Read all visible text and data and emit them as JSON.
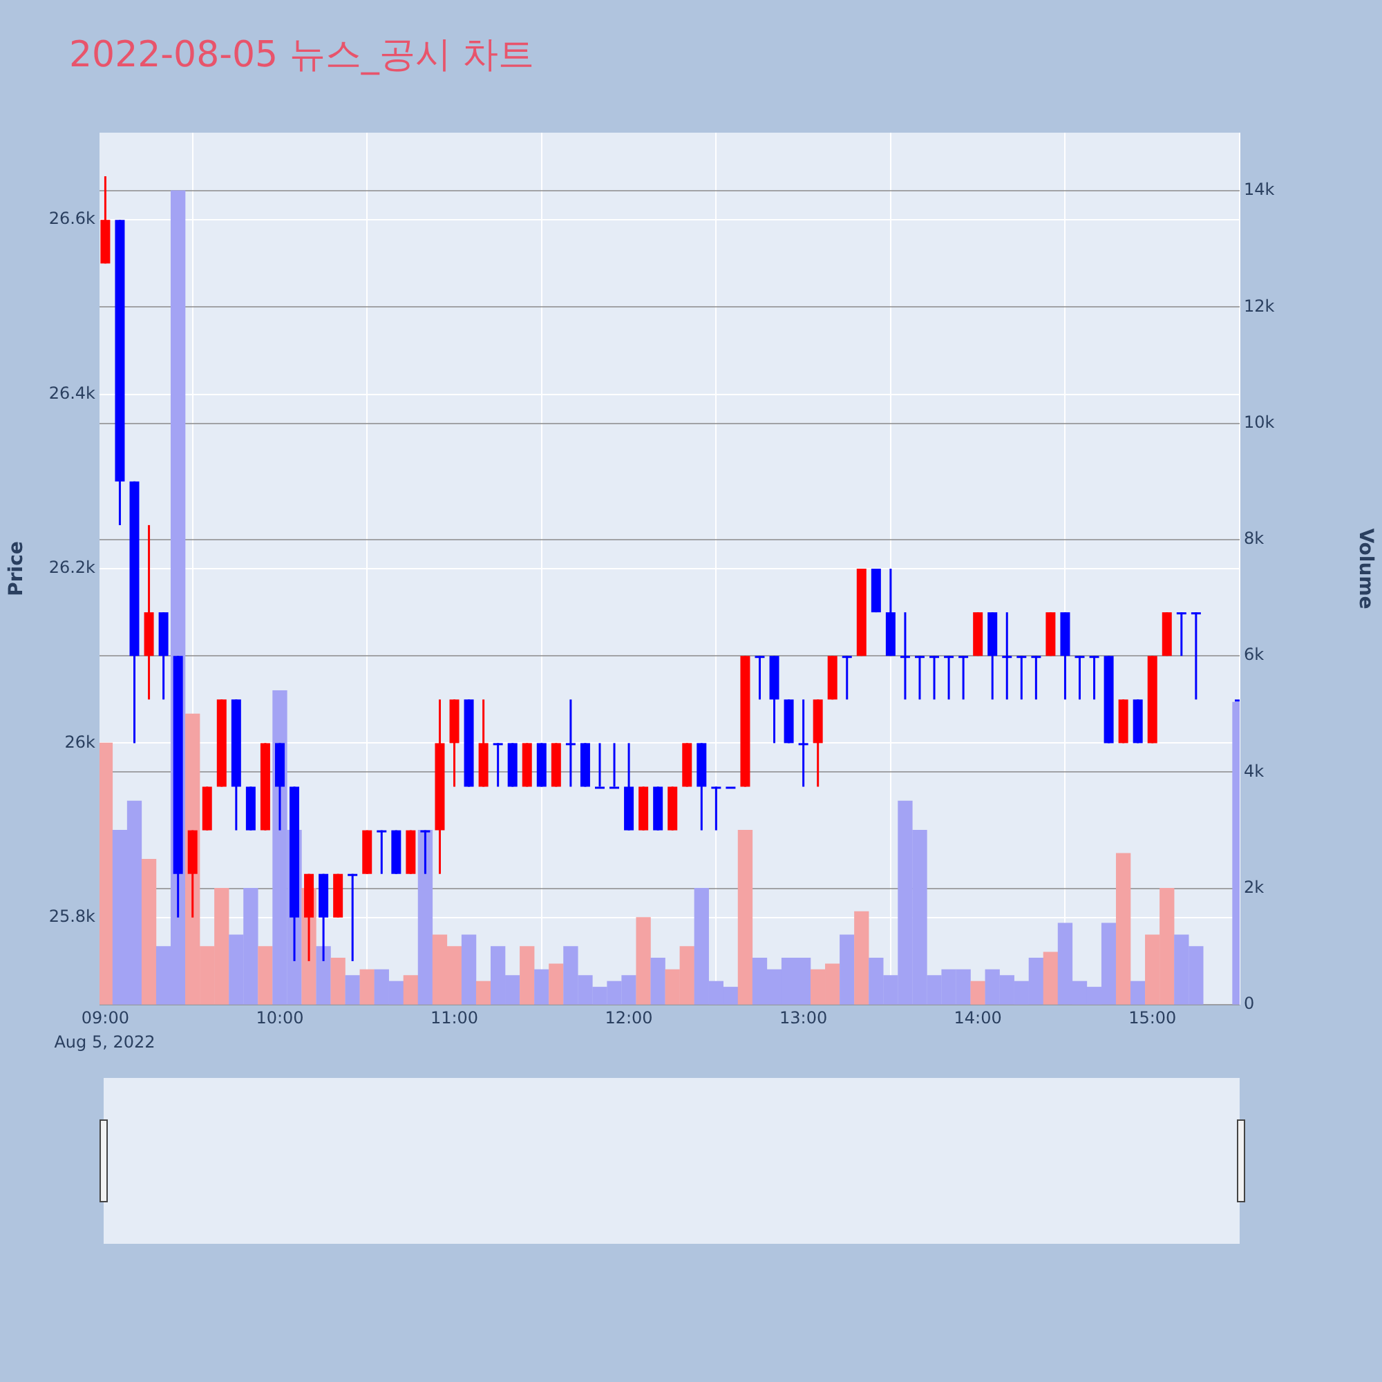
{
  "chart_data": {
    "type": "candlestick",
    "title": "2022-08-05 뉴스_공시 차트",
    "ylabel": "Price",
    "y2label": "Volume",
    "x": [
      "2022-08-05T09:00",
      "2022-08-05T09:05",
      "2022-08-05T09:10",
      "2022-08-05T09:15",
      "2022-08-05T09:20",
      "2022-08-05T09:25",
      "2022-08-05T09:30",
      "2022-08-05T09:35",
      "2022-08-05T09:40",
      "2022-08-05T09:45",
      "2022-08-05T09:50",
      "2022-08-05T09:55",
      "2022-08-05T10:00",
      "2022-08-05T10:05",
      "2022-08-05T10:10",
      "2022-08-05T10:15",
      "2022-08-05T10:20",
      "2022-08-05T10:25",
      "2022-08-05T10:30",
      "2022-08-05T10:35",
      "2022-08-05T10:40",
      "2022-08-05T10:45",
      "2022-08-05T10:50",
      "2022-08-05T10:55",
      "2022-08-05T11:00",
      "2022-08-05T11:05",
      "2022-08-05T11:10",
      "2022-08-05T11:15",
      "2022-08-05T11:20",
      "2022-08-05T11:25",
      "2022-08-05T11:30",
      "2022-08-05T11:35",
      "2022-08-05T11:40",
      "2022-08-05T11:45",
      "2022-08-05T11:50",
      "2022-08-05T11:55",
      "2022-08-05T12:00",
      "2022-08-05T12:05",
      "2022-08-05T12:10",
      "2022-08-05T12:15",
      "2022-08-05T12:20",
      "2022-08-05T12:25",
      "2022-08-05T12:30",
      "2022-08-05T12:35",
      "2022-08-05T12:40",
      "2022-08-05T12:45",
      "2022-08-05T12:50",
      "2022-08-05T12:55",
      "2022-08-05T13:00",
      "2022-08-05T13:05",
      "2022-08-05T13:10",
      "2022-08-05T13:15",
      "2022-08-05T13:20",
      "2022-08-05T13:25",
      "2022-08-05T13:30",
      "2022-08-05T13:35",
      "2022-08-05T13:40",
      "2022-08-05T13:45",
      "2022-08-05T13:50",
      "2022-08-05T13:55",
      "2022-08-05T14:00",
      "2022-08-05T14:05",
      "2022-08-05T14:10",
      "2022-08-05T14:15",
      "2022-08-05T14:20",
      "2022-08-05T14:25",
      "2022-08-05T14:30",
      "2022-08-05T14:35",
      "2022-08-05T14:40",
      "2022-08-05T14:45",
      "2022-08-05T14:50",
      "2022-08-05T14:55",
      "2022-08-05T15:00",
      "2022-08-05T15:05",
      "2022-08-05T15:10",
      "2022-08-05T15:15",
      "2022-08-05T15:30"
    ],
    "ohlc": [
      [
        26550,
        26650,
        26550,
        26600
      ],
      [
        26600,
        26600,
        26250,
        26300
      ],
      [
        26300,
        26300,
        26000,
        26100
      ],
      [
        26100,
        26250,
        26050,
        26150
      ],
      [
        26150,
        26150,
        26050,
        26100
      ],
      [
        26100,
        26100,
        25800,
        25850
      ],
      [
        25850,
        25900,
        25800,
        25900
      ],
      [
        25900,
        25950,
        25900,
        25950
      ],
      [
        25950,
        26050,
        25950,
        26050
      ],
      [
        26050,
        26050,
        25900,
        25950
      ],
      [
        25950,
        25950,
        25900,
        25900
      ],
      [
        25900,
        26000,
        25900,
        26000
      ],
      [
        26000,
        26000,
        25900,
        25950
      ],
      [
        25950,
        25950,
        25750,
        25800
      ],
      [
        25800,
        25850,
        25750,
        25850
      ],
      [
        25850,
        25850,
        25750,
        25800
      ],
      [
        25800,
        25850,
        25800,
        25850
      ],
      [
        25850,
        25850,
        25750,
        25850
      ],
      [
        25850,
        25900,
        25850,
        25900
      ],
      [
        25900,
        25900,
        25850,
        25900
      ],
      [
        25900,
        25900,
        25850,
        25850
      ],
      [
        25850,
        25900,
        25850,
        25900
      ],
      [
        25900,
        25900,
        25850,
        25900
      ],
      [
        25900,
        26050,
        25850,
        26000
      ],
      [
        26000,
        26050,
        25950,
        26050
      ],
      [
        26050,
        26050,
        25950,
        25950
      ],
      [
        25950,
        26050,
        25950,
        26000
      ],
      [
        26000,
        26000,
        25950,
        26000
      ],
      [
        26000,
        26000,
        25950,
        25950
      ],
      [
        25950,
        26000,
        25950,
        26000
      ],
      [
        26000,
        26000,
        25950,
        25950
      ],
      [
        25950,
        26000,
        25950,
        26000
      ],
      [
        26000,
        26050,
        25950,
        26000
      ],
      [
        26000,
        26000,
        25950,
        25950
      ],
      [
        25950,
        26000,
        25950,
        25950
      ],
      [
        25950,
        26000,
        25950,
        25950
      ],
      [
        25950,
        26000,
        25900,
        25900
      ],
      [
        25900,
        25950,
        25900,
        25950
      ],
      [
        25950,
        25950,
        25900,
        25900
      ],
      [
        25900,
        25950,
        25900,
        25950
      ],
      [
        25950,
        26000,
        25950,
        26000
      ],
      [
        26000,
        26000,
        25900,
        25950
      ],
      [
        25950,
        25950,
        25900,
        25950
      ],
      [
        25950,
        25950,
        25950,
        25950
      ],
      [
        25950,
        26100,
        25950,
        26100
      ],
      [
        26100,
        26100,
        26050,
        26100
      ],
      [
        26100,
        26100,
        26000,
        26050
      ],
      [
        26050,
        26050,
        26000,
        26000
      ],
      [
        26000,
        26050,
        25950,
        26000
      ],
      [
        26000,
        26050,
        25950,
        26050
      ],
      [
        26050,
        26100,
        26050,
        26100
      ],
      [
        26100,
        26100,
        26050,
        26100
      ],
      [
        26100,
        26200,
        26100,
        26200
      ],
      [
        26200,
        26200,
        26150,
        26150
      ],
      [
        26150,
        26200,
        26100,
        26100
      ],
      [
        26100,
        26150,
        26050,
        26100
      ],
      [
        26100,
        26100,
        26050,
        26100
      ],
      [
        26100,
        26100,
        26050,
        26100
      ],
      [
        26100,
        26100,
        26050,
        26100
      ],
      [
        26100,
        26100,
        26050,
        26100
      ],
      [
        26100,
        26150,
        26100,
        26150
      ],
      [
        26150,
        26150,
        26050,
        26100
      ],
      [
        26100,
        26150,
        26050,
        26100
      ],
      [
        26100,
        26100,
        26050,
        26100
      ],
      [
        26100,
        26100,
        26050,
        26100
      ],
      [
        26100,
        26150,
        26100,
        26150
      ],
      [
        26150,
        26150,
        26050,
        26100
      ],
      [
        26100,
        26100,
        26050,
        26100
      ],
      [
        26100,
        26100,
        26050,
        26100
      ],
      [
        26100,
        26100,
        26000,
        26000
      ],
      [
        26000,
        26050,
        26000,
        26050
      ],
      [
        26050,
        26050,
        26000,
        26000
      ],
      [
        26000,
        26100,
        26000,
        26100
      ],
      [
        26100,
        26150,
        26100,
        26150
      ],
      [
        26150,
        26150,
        26100,
        26150
      ],
      [
        26150,
        26150,
        26050,
        26150
      ],
      [
        26050,
        26050,
        26050,
        26050
      ]
    ],
    "colors": [
      "#ff0000",
      "#0000ff",
      "#0000ff",
      "#ff0000",
      "#0000ff",
      "#0000ff",
      "#ff0000",
      "#ff0000",
      "#ff0000",
      "#0000ff",
      "#0000ff",
      "#ff0000",
      "#0000ff",
      "#0000ff",
      "#ff0000",
      "#0000ff",
      "#ff0000",
      "#0000ff",
      "#ff0000",
      "#0000ff",
      "#0000ff",
      "#ff0000",
      "#0000ff",
      "#ff0000",
      "#ff0000",
      "#0000ff",
      "#ff0000",
      "#0000ff",
      "#0000ff",
      "#ff0000",
      "#0000ff",
      "#ff0000",
      "#0000ff",
      "#0000ff",
      "#0000ff",
      "#0000ff",
      "#0000ff",
      "#ff0000",
      "#0000ff",
      "#ff0000",
      "#ff0000",
      "#0000ff",
      "#0000ff",
      "#0000ff",
      "#ff0000",
      "#0000ff",
      "#0000ff",
      "#0000ff",
      "#0000ff",
      "#ff0000",
      "#ff0000",
      "#0000ff",
      "#ff0000",
      "#0000ff",
      "#0000ff",
      "#0000ff",
      "#0000ff",
      "#0000ff",
      "#0000ff",
      "#0000ff",
      "#ff0000",
      "#0000ff",
      "#0000ff",
      "#0000ff",
      "#0000ff",
      "#ff0000",
      "#0000ff",
      "#0000ff",
      "#0000ff",
      "#0000ff",
      "#ff0000",
      "#0000ff",
      "#ff0000",
      "#ff0000",
      "#0000ff",
      "#0000ff",
      "#0000ff"
    ],
    "series": [
      {
        "type": "bar",
        "axis": "y2",
        "values": [
          4500,
          3000,
          3500,
          2500,
          1000,
          14000,
          5000,
          1000,
          2000,
          1200,
          2000,
          1000,
          5400,
          3000,
          2000,
          1000,
          800,
          500,
          600,
          600,
          400,
          500,
          3000,
          1200,
          1000,
          1200,
          400,
          1000,
          500,
          1000,
          600,
          700,
          1000,
          500,
          300,
          400,
          500,
          1500,
          800,
          600,
          1000,
          2000,
          400,
          300,
          3000,
          800,
          600,
          800,
          800,
          600,
          700,
          1200,
          1600,
          800,
          500,
          3500,
          3000,
          500,
          600,
          600,
          400,
          600,
          500,
          400,
          800,
          900,
          1400,
          400,
          300,
          1400,
          2600,
          400,
          1200,
          2000,
          1200,
          1000,
          5200
        ],
        "colors": [
          "#f4a3a3",
          "#a3a3f4",
          "#a3a3f4",
          "#f4a3a3",
          "#a3a3f4",
          "#a3a3f4",
          "#f4a3a3",
          "#f4a3a3",
          "#f4a3a3",
          "#a3a3f4",
          "#a3a3f4",
          "#f4a3a3",
          "#a3a3f4",
          "#a3a3f4",
          "#f4a3a3",
          "#a3a3f4",
          "#f4a3a3",
          "#a3a3f4",
          "#f4a3a3",
          "#a3a3f4",
          "#a3a3f4",
          "#f4a3a3",
          "#a3a3f4",
          "#f4a3a3",
          "#f4a3a3",
          "#a3a3f4",
          "#f4a3a3",
          "#a3a3f4",
          "#a3a3f4",
          "#f4a3a3",
          "#a3a3f4",
          "#f4a3a3",
          "#a3a3f4",
          "#a3a3f4",
          "#a3a3f4",
          "#a3a3f4",
          "#a3a3f4",
          "#f4a3a3",
          "#a3a3f4",
          "#f4a3a3",
          "#f4a3a3",
          "#a3a3f4",
          "#a3a3f4",
          "#a3a3f4",
          "#f4a3a3",
          "#a3a3f4",
          "#a3a3f4",
          "#a3a3f4",
          "#a3a3f4",
          "#f4a3a3",
          "#f4a3a3",
          "#a3a3f4",
          "#f4a3a3",
          "#a3a3f4",
          "#a3a3f4",
          "#a3a3f4",
          "#a3a3f4",
          "#a3a3f4",
          "#a3a3f4",
          "#a3a3f4",
          "#f4a3a3",
          "#a3a3f4",
          "#a3a3f4",
          "#a3a3f4",
          "#a3a3f4",
          "#f4a3a3",
          "#a3a3f4",
          "#a3a3f4",
          "#a3a3f4",
          "#a3a3f4",
          "#f4a3a3",
          "#a3a3f4",
          "#f4a3a3",
          "#f4a3a3",
          "#a3a3f4",
          "#a3a3f4",
          "#a3a3f4"
        ]
      }
    ],
    "xlim": [
      "2022-08-05T08:58",
      "2022-08-05T15:30"
    ],
    "xticks": [
      {
        "value": "2022-08-05T09:00",
        "label": "09:00"
      },
      {
        "value": "2022-08-05T10:00",
        "label": "10:00"
      },
      {
        "value": "2022-08-05T11:00",
        "label": "11:00"
      },
      {
        "value": "2022-08-05T12:00",
        "label": "12:00"
      },
      {
        "value": "2022-08-05T13:00",
        "label": "13:00"
      },
      {
        "value": "2022-08-05T14:00",
        "label": "14:00"
      },
      {
        "value": "2022-08-05T15:00",
        "label": "15:00"
      }
    ],
    "ylim": [
      25700,
      26700
    ],
    "yticks": [
      {
        "value": 25800,
        "label": "25.8k"
      },
      {
        "value": 26000,
        "label": "26k"
      },
      {
        "value": 26200,
        "label": "26.2k"
      },
      {
        "value": 26400,
        "label": "26.4k"
      },
      {
        "value": 26600,
        "label": "26.6k"
      }
    ],
    "y2lim": [
      0,
      15000
    ],
    "y2ticks": [
      0,
      {
        "value": 2000,
        "label": "2k"
      },
      {
        "value": 4000,
        "label": "4k"
      },
      {
        "value": 6000,
        "label": "6k"
      },
      {
        "value": 8000,
        "label": "8k"
      },
      {
        "value": 10000,
        "label": "10k"
      },
      {
        "value": 12000,
        "label": "12k"
      },
      {
        "value": 14000,
        "label": "14k"
      }
    ],
    "grid": true,
    "annotations": [
      "Aug 5, 2022"
    ]
  }
}
